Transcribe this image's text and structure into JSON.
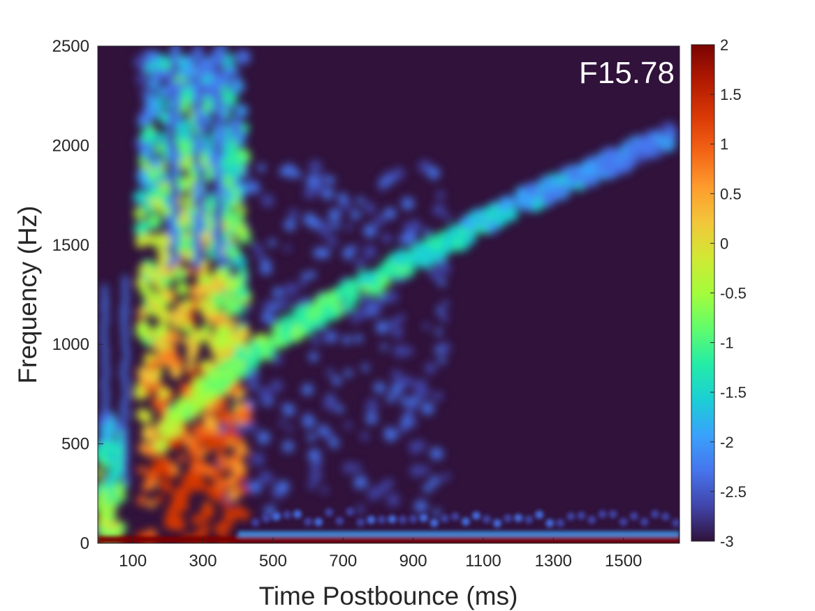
{
  "chart_data": {
    "type": "heatmap",
    "title": "",
    "panel_label": "F15.78",
    "xlabel": "Time Postbounce (ms)",
    "ylabel": "Frequency (Hz)",
    "xlim": [
      0,
      1660
    ],
    "ylim": [
      0,
      2500
    ],
    "xticks": [
      100,
      300,
      500,
      700,
      900,
      1100,
      1300,
      1500
    ],
    "yticks": [
      0,
      500,
      1000,
      1500,
      2000,
      2500
    ],
    "colorbar": {
      "range": [
        -3,
        2
      ],
      "ticks": [
        "2",
        "1.5",
        "1",
        "0.5",
        "0",
        "-0.5",
        "-1",
        "-1.5",
        "-2",
        "-2.5",
        "-3"
      ],
      "colors": [
        "#30123b",
        "#4145ab",
        "#4675ed",
        "#39a2fc",
        "#1bcfd4",
        "#24eca6",
        "#61fc6c",
        "#a4fc3b",
        "#d1e834",
        "#f3c63a",
        "#fe9b2d",
        "#f36315",
        "#d93806",
        "#b11901",
        "#7a0402"
      ]
    },
    "background_color": "#30123b",
    "features": [
      {
        "name": "low-frequency band",
        "t": [
          0,
          1660
        ],
        "f": [
          0,
          30
        ],
        "value": 2
      },
      {
        "name": "rising mode",
        "t": [
          150,
          1640
        ],
        "f": [
          500,
          2050
        ],
        "value": -0.5
      },
      {
        "name": "broadband emission",
        "t": [
          120,
          420
        ],
        "f": [
          0,
          2500
        ],
        "value": 0
      }
    ]
  }
}
